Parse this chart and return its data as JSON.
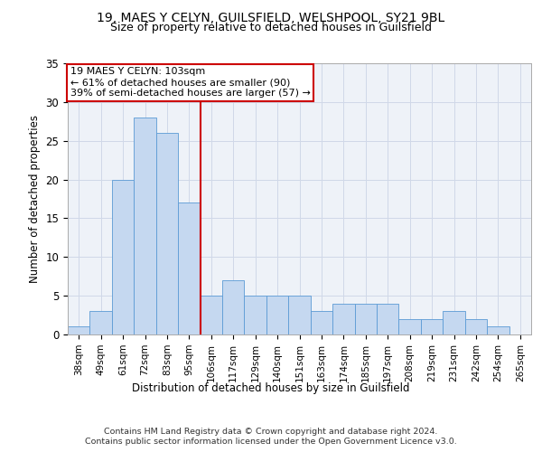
{
  "title_line1": "19, MAES Y CELYN, GUILSFIELD, WELSHPOOL, SY21 9BL",
  "title_line2": "Size of property relative to detached houses in Guilsfield",
  "xlabel": "Distribution of detached houses by size in Guilsfield",
  "ylabel": "Number of detached properties",
  "categories": [
    "38sqm",
    "49sqm",
    "61sqm",
    "72sqm",
    "83sqm",
    "95sqm",
    "106sqm",
    "117sqm",
    "129sqm",
    "140sqm",
    "151sqm",
    "163sqm",
    "174sqm",
    "185sqm",
    "197sqm",
    "208sqm",
    "219sqm",
    "231sqm",
    "242sqm",
    "254sqm",
    "265sqm"
  ],
  "values": [
    1,
    3,
    20,
    28,
    26,
    17,
    5,
    7,
    5,
    5,
    5,
    3,
    4,
    4,
    4,
    2,
    2,
    3,
    2,
    1,
    0
  ],
  "bar_color": "#c5d8f0",
  "bar_edge_color": "#5b9bd5",
  "grid_color": "#d0d8e8",
  "background_color": "#eef2f8",
  "vline_color": "#cc0000",
  "vline_x_index": 5,
  "annotation_text_line1": "19 MAES Y CELYN: 103sqm",
  "annotation_text_line2": "← 61% of detached houses are smaller (90)",
  "annotation_text_line3": "39% of semi-detached houses are larger (57) →",
  "annotation_box_color": "#ffffff",
  "annotation_border_color": "#cc0000",
  "footer_line1": "Contains HM Land Registry data © Crown copyright and database right 2024.",
  "footer_line2": "Contains public sector information licensed under the Open Government Licence v3.0.",
  "ylim": [
    0,
    35
  ],
  "yticks": [
    0,
    5,
    10,
    15,
    20,
    25,
    30,
    35
  ]
}
